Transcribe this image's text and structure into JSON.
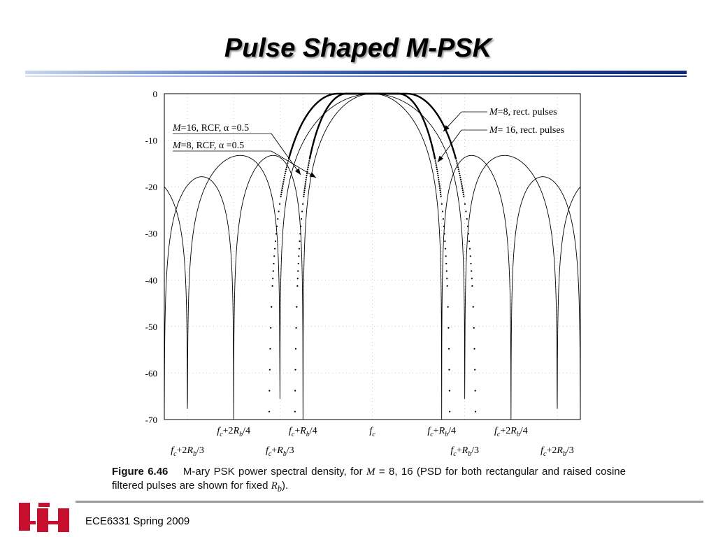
{
  "slide": {
    "title": "Pulse Shaped M-PSK",
    "footer": "ECE6331 Spring 2009",
    "logo_icon": "uh-logo-icon",
    "accent_color": "#1a3a8f",
    "logo_color": "#c8102e"
  },
  "caption": {
    "label": "Figure 6.46",
    "text_before_m": "M-ary PSK power spectral density, for",
    "m_symbol": "M",
    "text_after_m": "= 8, 16 (PSD for both rectangular and raised cosine filtered pulses are shown for fixed",
    "rb_symbol": "R",
    "rb_subscript": "b",
    "text_end": ")."
  },
  "chart_data": {
    "type": "line",
    "x_unit_note": "frequency offset from fc in units of Rb",
    "xlim": [
      -0.75,
      0.75
    ],
    "ylim": [
      -70,
      0
    ],
    "y_ticks": [
      0,
      -10,
      -20,
      -30,
      -40,
      -50,
      -60,
      -70
    ],
    "grid": "dotted",
    "x_tick_labels_upper": [
      {
        "x": -0.5,
        "base": "f",
        "sub1": "c",
        "mid": "+2R",
        "sub2": "b",
        "tail": "/4"
      },
      {
        "x": -0.25,
        "base": "f",
        "sub1": "c",
        "mid": "+R",
        "sub2": "b",
        "tail": "/4"
      },
      {
        "x": 0,
        "base": "f",
        "sub1": "c",
        "mid": "",
        "sub2": "",
        "tail": ""
      },
      {
        "x": 0.25,
        "base": "f",
        "sub1": "c",
        "mid": "+R",
        "sub2": "b",
        "tail": "/4"
      },
      {
        "x": 0.5,
        "base": "f",
        "sub1": "c",
        "mid": "+2R",
        "sub2": "b",
        "tail": "/4"
      }
    ],
    "x_tick_labels_lower": [
      {
        "x": -0.6667,
        "base": "f",
        "sub1": "c",
        "mid": "+2R",
        "sub2": "b",
        "tail": "/3"
      },
      {
        "x": -0.3333,
        "base": "f",
        "sub1": "c",
        "mid": "+R",
        "sub2": "b",
        "tail": "/3"
      },
      {
        "x": 0.3333,
        "base": "f",
        "sub1": "c",
        "mid": "+R",
        "sub2": "b",
        "tail": "/3"
      },
      {
        "x": 0.6667,
        "base": "f",
        "sub1": "c",
        "mid": "+2R",
        "sub2": "b",
        "tail": "/3"
      }
    ],
    "series": [
      {
        "name": "M=8, rect. pulses",
        "shape": "sinc2",
        "first_null": 0.3333,
        "peak_db": 0
      },
      {
        "name": "M=16, rect. pulses",
        "shape": "sinc2",
        "first_null": 0.25,
        "peak_db": 0
      },
      {
        "name": "M=8, RCF, α =0.5",
        "shape": "raised-cosine",
        "rolloff": 0.5,
        "bandwidth": 0.25,
        "style": "dotted"
      },
      {
        "name": "M=16, RCF, α =0.5",
        "shape": "raised-cosine",
        "rolloff": 0.5,
        "bandwidth": 0.1875,
        "style": "dotted"
      }
    ],
    "annotations": [
      {
        "text_pre": "M",
        "text_post": "=16, RCF,  α =0.5",
        "side": "left",
        "series": 3
      },
      {
        "text_pre": "M",
        "text_post": "=8, RCF,  α =0.5",
        "side": "left",
        "series": 2
      },
      {
        "text_pre": "M",
        "text_post": "=8, rect. pulses",
        "side": "right",
        "series": 0
      },
      {
        "text_pre": "M",
        "text_post": "= 16, rect. pulses",
        "side": "right",
        "series": 1
      }
    ]
  }
}
